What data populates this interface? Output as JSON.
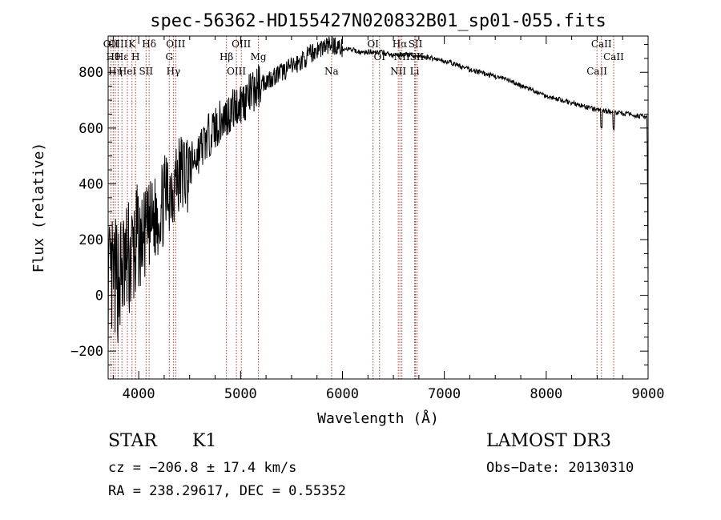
{
  "chart_data": {
    "type": "line",
    "title": "spec-56362-HD155427N020832B01_sp01-055.fits",
    "xlabel": "Wavelength (Å)",
    "ylabel": "Flux (relative)",
    "xlim": [
      3700,
      9000
    ],
    "ylim": [
      -300,
      930
    ],
    "x_ticks": [
      4000,
      5000,
      6000,
      7000,
      8000,
      9000
    ],
    "y_ticks": [
      -200,
      0,
      200,
      400,
      600,
      800
    ],
    "series": [
      {
        "name": "flux",
        "x": [
          3700,
          3800,
          3900,
          4000,
          4100,
          4200,
          4300,
          4400,
          4500,
          4600,
          4700,
          4800,
          4900,
          5000,
          5100,
          5200,
          5300,
          5400,
          5500,
          5600,
          5700,
          5800,
          5900,
          6000,
          6100,
          6200,
          6300,
          6400,
          6500,
          6600,
          6700,
          6800,
          6900,
          7000,
          7100,
          7200,
          7300,
          7400,
          7500,
          7600,
          7700,
          7800,
          7900,
          8000,
          8100,
          8200,
          8300,
          8400,
          8500,
          8600,
          8700,
          8800,
          8900,
          8960,
          9000
        ],
        "y": [
          30,
          60,
          120,
          180,
          240,
          300,
          380,
          430,
          460,
          520,
          580,
          620,
          660,
          690,
          720,
          760,
          780,
          800,
          820,
          840,
          870,
          890,
          900,
          885,
          880,
          870,
          875,
          870,
          860,
          865,
          860,
          855,
          850,
          840,
          830,
          815,
          805,
          795,
          785,
          775,
          760,
          745,
          730,
          715,
          705,
          695,
          685,
          675,
          665,
          660,
          655,
          650,
          645,
          640,
          640
        ]
      }
    ],
    "line_markers": [
      {
        "wavelength": 3727,
        "label": "OII"
      },
      {
        "wavelength": 3750,
        "label": "Hθ"
      },
      {
        "wavelength": 3770,
        "label": "Hη"
      },
      {
        "wavelength": 3798,
        "label": "OIII"
      },
      {
        "wavelength": 3835,
        "label": "Hε"
      },
      {
        "wavelength": 3889,
        "label": "HeI"
      },
      {
        "wavelength": 3934,
        "label": "K"
      },
      {
        "wavelength": 3969,
        "label": "H"
      },
      {
        "wavelength": 4072,
        "label": "SII"
      },
      {
        "wavelength": 4102,
        "label": "Hδ"
      },
      {
        "wavelength": 4300,
        "label": "G"
      },
      {
        "wavelength": 4340,
        "label": "Hγ"
      },
      {
        "wavelength": 4363,
        "label": "OIII"
      },
      {
        "wavelength": 4861,
        "label": "Hβ"
      },
      {
        "wavelength": 4959,
        "label": "OIII"
      },
      {
        "wavelength": 5007,
        "label": "OIII"
      },
      {
        "wavelength": 5175,
        "label": "Mg"
      },
      {
        "wavelength": 5893,
        "label": "Na"
      },
      {
        "wavelength": 6300,
        "label": "OI"
      },
      {
        "wavelength": 6364,
        "label": "OI"
      },
      {
        "wavelength": 6548,
        "label": "NII"
      },
      {
        "wavelength": 6563,
        "label": "Hα"
      },
      {
        "wavelength": 6583,
        "label": "NII"
      },
      {
        "wavelength": 6708,
        "label": "Li"
      },
      {
        "wavelength": 6716,
        "label": "SII"
      },
      {
        "wavelength": 6731,
        "label": "SII"
      },
      {
        "wavelength": 8498,
        "label": "CaII"
      },
      {
        "wavelength": 8542,
        "label": "CaII"
      },
      {
        "wavelength": 8662,
        "label": "CaII"
      }
    ]
  },
  "info": {
    "class_label": "STAR",
    "subclass": "K1",
    "survey": "LAMOST DR3",
    "cz": "cz = −206.8 ± 17.4 km/s",
    "obs_date": "Obs−Date: 20130310",
    "coords": "RA = 238.29617, DEC =   0.55352"
  }
}
